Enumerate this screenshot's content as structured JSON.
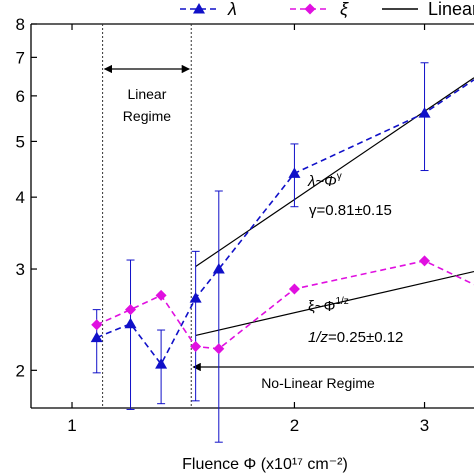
{
  "chart_data": {
    "type": "scatter",
    "xlabel": "Fluence Φ (x10¹⁷ cm⁻²)",
    "x_scale": "log",
    "y_scale": "log",
    "xlim": [
      0.88,
      3.5
    ],
    "ylim": [
      1.72,
      8.0
    ],
    "x_ticks": [
      {
        "value": 1,
        "label": "1"
      },
      {
        "value": 2,
        "label": "2"
      },
      {
        "value": 3,
        "label": "3"
      }
    ],
    "y_ticks": [
      {
        "value": 2,
        "label": "2"
      },
      {
        "value": 3,
        "label": "3"
      },
      {
        "value": 4,
        "label": "4"
      },
      {
        "value": 5,
        "label": "5"
      },
      {
        "value": 6,
        "label": "6"
      },
      {
        "value": 7,
        "label": "7"
      },
      {
        "value": 8,
        "label": "8"
      }
    ],
    "legend": {
      "placement": "top-right",
      "entries": [
        {
          "label": "λ",
          "color": "#1010c8",
          "marker": "triangle",
          "line": "dashed"
        },
        {
          "label": "ξ",
          "color": "#e010e0",
          "marker": "diamond",
          "line": "dashed"
        },
        {
          "label": "Linear",
          "color": "#000000",
          "marker": "none",
          "line": "solid"
        }
      ]
    },
    "series": [
      {
        "name": "λ",
        "color": "#1010c8",
        "marker": "triangle",
        "x": [
          1.08,
          1.2,
          1.32,
          1.47,
          1.58,
          2.0,
          3.0,
          3.5
        ],
        "y": [
          2.28,
          2.41,
          2.05,
          2.67,
          3.0,
          4.4,
          5.6,
          6.4
        ],
        "error_low": [
          0.3,
          0.7,
          0.3,
          0.9,
          1.5,
          0.55,
          1.15,
          null
        ],
        "error_high": [
          0.27,
          0.7,
          0.3,
          0.55,
          1.1,
          0.55,
          1.25,
          null
        ]
      },
      {
        "name": "ξ",
        "color": "#e010e0",
        "marker": "diamond",
        "x": [
          1.08,
          1.2,
          1.32,
          1.47,
          1.58,
          2.0,
          3.0,
          3.5
        ],
        "y": [
          2.4,
          2.55,
          2.7,
          2.2,
          2.18,
          2.77,
          3.1,
          2.82
        ],
        "error_low": [
          null,
          null,
          null,
          null,
          null,
          null,
          null,
          null
        ],
        "error_high": [
          null,
          null,
          null,
          null,
          null,
          null,
          null,
          null
        ]
      }
    ],
    "fit_lines": [
      {
        "name": "λ fit",
        "x": [
          1.47,
          3.5
        ],
        "y": [
          3.03,
          6.45
        ]
      },
      {
        "name": "ξ fit",
        "x": [
          1.47,
          3.5
        ],
        "y": [
          2.3,
          2.97
        ]
      }
    ],
    "regions": [
      {
        "label_lines": [
          "Linear",
          "Regime"
        ],
        "x_from": 1.1,
        "x_to": 1.45,
        "arrow": "both"
      },
      {
        "label_lines": [
          "No-Linear Regime"
        ],
        "x_from": 1.45,
        "x_to": 3.5,
        "arrow": "left"
      }
    ],
    "annotations": {
      "lambda_law": {
        "base": "λ~Φ",
        "exp": "γ"
      },
      "lambda_value": "γ=0.81±0.15",
      "xi_law": {
        "base": "ξ~Φ",
        "exp": "1/z"
      },
      "xi_value": {
        "var": "1/z",
        "rest": "=0.25±0.12"
      }
    }
  }
}
